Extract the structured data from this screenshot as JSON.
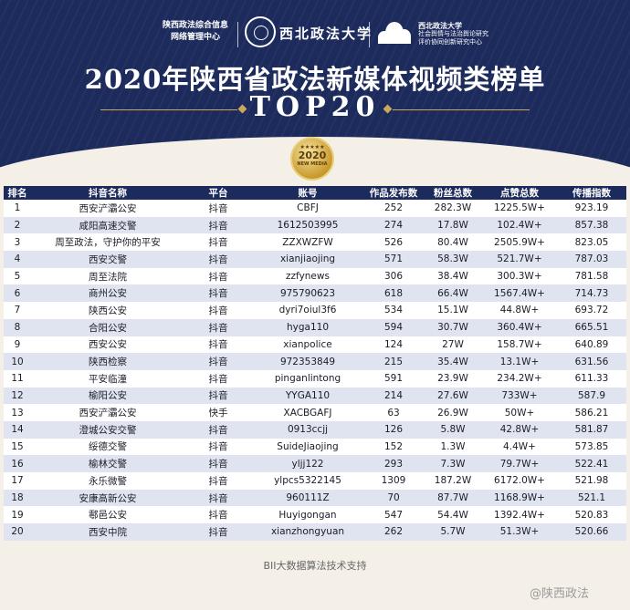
{
  "header": {
    "logo1_line1": "陕西政法综合信息",
    "logo1_line2": "网络管理中心",
    "university": "西北政法大学",
    "logo3_line1": "西北政法大学",
    "logo3_line2": "社会舆情与法治舆论研究",
    "logo3_line3": "评价协同创新研究中心",
    "title": "2020年陕西省政法新媒体视频类榜单",
    "subtitle": "TOP20",
    "badge_year": "2020",
    "badge_text": "NEW MEDIA",
    "badge_stars": "★★★★★"
  },
  "table": {
    "columns": [
      "排名",
      "抖音名称",
      "平台",
      "账号",
      "作品发布数",
      "粉丝总数",
      "点赞总数",
      "传播指数"
    ],
    "rows": [
      [
        "1",
        "西安浐灞公安",
        "抖音",
        "CBFJ",
        "252",
        "282.3W",
        "1225.5W+",
        "923.19"
      ],
      [
        "2",
        "咸阳高速交警",
        "抖音",
        "1612503995",
        "274",
        "17.8W",
        "102.4W+",
        "857.38"
      ],
      [
        "3",
        "周至政法，守护你的平安",
        "抖音",
        "ZZXWZFW",
        "526",
        "80.4W",
        "2505.9W+",
        "823.05"
      ],
      [
        "4",
        "西安交警",
        "抖音",
        "xianjiaojing",
        "571",
        "58.3W",
        "521.7W+",
        "787.03"
      ],
      [
        "5",
        "周至法院",
        "抖音",
        "zzfynews",
        "306",
        "38.4W",
        "300.3W+",
        "781.58"
      ],
      [
        "6",
        "商州公安",
        "抖音",
        "975790623",
        "618",
        "66.4W",
        "1567.4W+",
        "714.73"
      ],
      [
        "7",
        "陕西公安",
        "抖音",
        "dyri7oiul3f6",
        "534",
        "15.1W",
        "44.8W+",
        "693.72"
      ],
      [
        "8",
        "合阳公安",
        "抖音",
        "hyga110",
        "594",
        "30.7W",
        "360.4W+",
        "665.51"
      ],
      [
        "9",
        "西安公安",
        "抖音",
        "xianpolice",
        "124",
        "27W",
        "158.7W+",
        "640.89"
      ],
      [
        "10",
        "陕西检察",
        "抖音",
        "972353849",
        "215",
        "35.4W",
        "13.1W+",
        "631.56"
      ],
      [
        "11",
        "平安临潼",
        "抖音",
        "pinganlintong",
        "591",
        "23.9W",
        "234.2W+",
        "611.33"
      ],
      [
        "12",
        "榆阳公安",
        "抖音",
        "YYGA110",
        "214",
        "27.6W",
        "733W+",
        "587.9"
      ],
      [
        "13",
        "西安浐灞公安",
        "快手",
        "XACBGAFJ",
        "63",
        "26.9W",
        "50W+",
        "586.21"
      ],
      [
        "14",
        "澄城公安交警",
        "抖音",
        "0913ccjj",
        "126",
        "5.8W",
        "42.8W+",
        "581.87"
      ],
      [
        "15",
        "绥德交警",
        "抖音",
        "SuideJiaojing",
        "152",
        "1.3W",
        "4.4W+",
        "573.85"
      ],
      [
        "16",
        "榆林交警",
        "抖音",
        "yljj122",
        "293",
        "7.3W",
        "79.7W+",
        "522.41"
      ],
      [
        "17",
        "永乐微警",
        "抖音",
        "ylpcs5322145",
        "1309",
        "187.2W",
        "6172.0W+",
        "521.98"
      ],
      [
        "18",
        "安康高新公安",
        "抖音",
        "960111Z",
        "70",
        "87.7W",
        "1168.9W+",
        "521.1"
      ],
      [
        "19",
        "鄠邑公安",
        "抖音",
        "Huyigongan",
        "547",
        "54.4W",
        "1392.4W+",
        "520.83"
      ],
      [
        "20",
        "西安中院",
        "抖音",
        "xianzhongyuan",
        "262",
        "5.7W",
        "51.3W+",
        "520.66"
      ]
    ]
  },
  "footer": {
    "support": "BII大数据算法技术支持"
  },
  "watermark": "@陕西政法",
  "colors": {
    "navy": "#1c2a5c",
    "row_alt": "#dfe4f0",
    "gold": "#c9a85a"
  }
}
